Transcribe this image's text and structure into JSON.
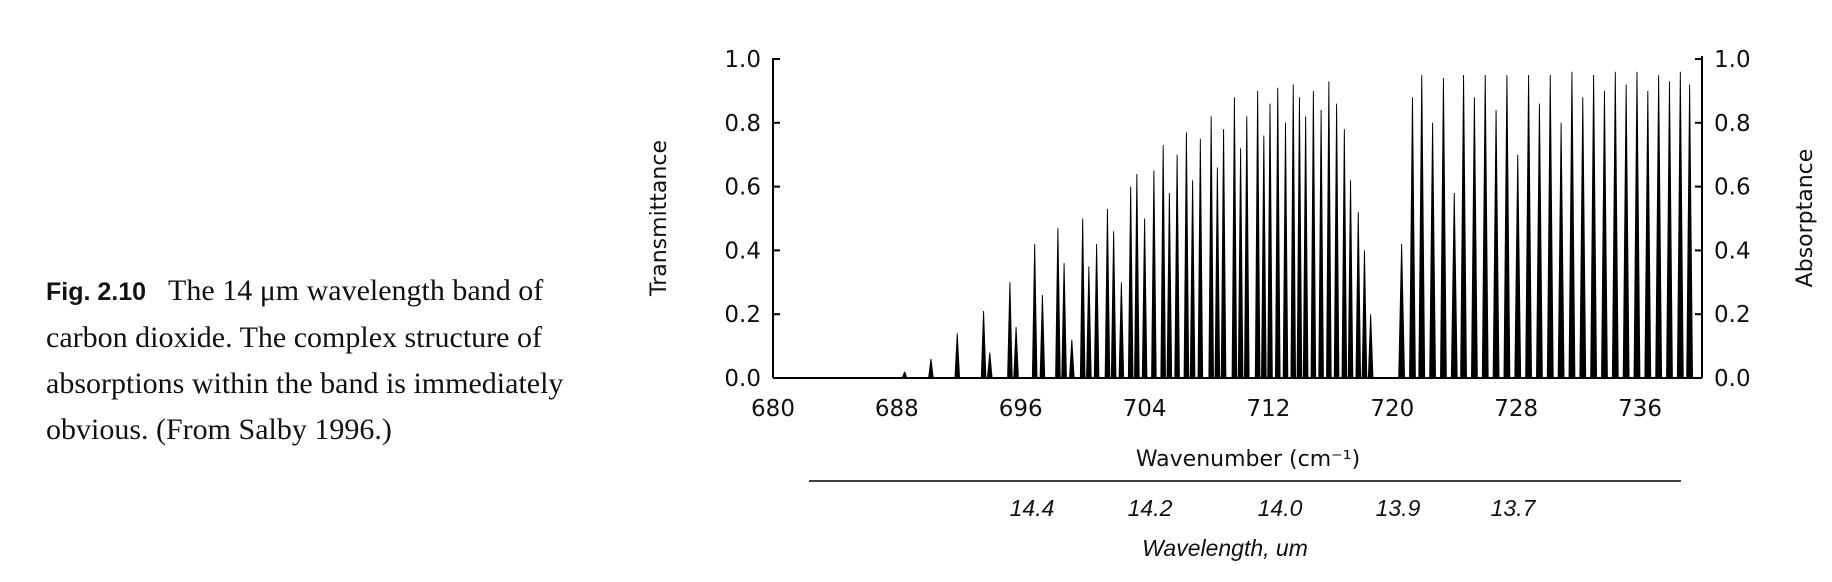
{
  "caption": {
    "figure_number": "Fig. 2.10",
    "text": "The 14 μm wavelength band of carbon dioxide. The complex structure of absorptions within the band is immediately obvious. (From Salby 1996.)"
  },
  "chart_data": {
    "type": "line",
    "title": "",
    "xlabel": "Wavenumber (cm⁻¹)",
    "ylabel_left": "Transmittance",
    "ylabel_right": "Absorptance",
    "xlim": [
      680,
      740
    ],
    "ylim": [
      0,
      1.0
    ],
    "x_ticks": [
      "680",
      "688",
      "696",
      "704",
      "712",
      "720",
      "728",
      "736"
    ],
    "y_ticks_left": [
      "0.0",
      "0.2",
      "0.4",
      "0.6",
      "0.8",
      "1.0"
    ],
    "y_ticks_right": [
      "0.0",
      "0.2",
      "0.4",
      "0.6",
      "0.8",
      "1.0"
    ],
    "secondary_axis": {
      "label": "Wavelength, um",
      "ticks": [
        "14.4",
        "14.2",
        "14.0",
        "13.9",
        "13.7"
      ]
    },
    "grid": false,
    "line_color": "#000000",
    "absorption_lines": [
      [
        688.5,
        0.02
      ],
      [
        690.2,
        0.06
      ],
      [
        691.9,
        0.14
      ],
      [
        693.6,
        0.21
      ],
      [
        694.0,
        0.08
      ],
      [
        695.3,
        0.3
      ],
      [
        695.7,
        0.16
      ],
      [
        696.9,
        0.42
      ],
      [
        697.4,
        0.26
      ],
      [
        698.4,
        0.47
      ],
      [
        698.8,
        0.36
      ],
      [
        699.3,
        0.12
      ],
      [
        700.0,
        0.5
      ],
      [
        700.4,
        0.35
      ],
      [
        700.9,
        0.42
      ],
      [
        701.6,
        0.53
      ],
      [
        702.0,
        0.46
      ],
      [
        702.5,
        0.3
      ],
      [
        703.1,
        0.6
      ],
      [
        703.5,
        0.64
      ],
      [
        704.0,
        0.5
      ],
      [
        704.6,
        0.65
      ],
      [
        705.2,
        0.73
      ],
      [
        705.6,
        0.58
      ],
      [
        706.1,
        0.7
      ],
      [
        706.7,
        0.77
      ],
      [
        707.1,
        0.62
      ],
      [
        707.6,
        0.75
      ],
      [
        708.3,
        0.82
      ],
      [
        708.7,
        0.66
      ],
      [
        709.1,
        0.78
      ],
      [
        709.8,
        0.88
      ],
      [
        710.2,
        0.72
      ],
      [
        710.6,
        0.82
      ],
      [
        711.3,
        0.9
      ],
      [
        711.7,
        0.76
      ],
      [
        712.1,
        0.86
      ],
      [
        712.6,
        0.91
      ],
      [
        713.1,
        0.8
      ],
      [
        713.6,
        0.92
      ],
      [
        714.0,
        0.88
      ],
      [
        714.4,
        0.82
      ],
      [
        714.9,
        0.9
      ],
      [
        715.4,
        0.84
      ],
      [
        715.9,
        0.93
      ],
      [
        716.4,
        0.86
      ],
      [
        716.9,
        0.78
      ],
      [
        717.3,
        0.62
      ],
      [
        717.8,
        0.52
      ],
      [
        718.2,
        0.4
      ],
      [
        718.6,
        0.2
      ],
      [
        720.6,
        0.42
      ],
      [
        721.3,
        0.88
      ],
      [
        721.9,
        0.95
      ],
      [
        722.6,
        0.8
      ],
      [
        723.3,
        0.94
      ],
      [
        724.0,
        0.58
      ],
      [
        724.6,
        0.95
      ],
      [
        725.3,
        0.88
      ],
      [
        726.0,
        0.95
      ],
      [
        726.7,
        0.84
      ],
      [
        727.4,
        0.95
      ],
      [
        728.1,
        0.7
      ],
      [
        728.8,
        0.95
      ],
      [
        729.5,
        0.86
      ],
      [
        730.2,
        0.95
      ],
      [
        730.9,
        0.8
      ],
      [
        731.6,
        0.96
      ],
      [
        732.3,
        0.88
      ],
      [
        733.0,
        0.95
      ],
      [
        733.7,
        0.9
      ],
      [
        734.4,
        0.96
      ],
      [
        735.1,
        0.92
      ],
      [
        735.8,
        0.96
      ],
      [
        736.5,
        0.9
      ],
      [
        737.2,
        0.95
      ],
      [
        737.9,
        0.93
      ],
      [
        738.6,
        0.96
      ],
      [
        739.2,
        0.92
      ]
    ]
  }
}
